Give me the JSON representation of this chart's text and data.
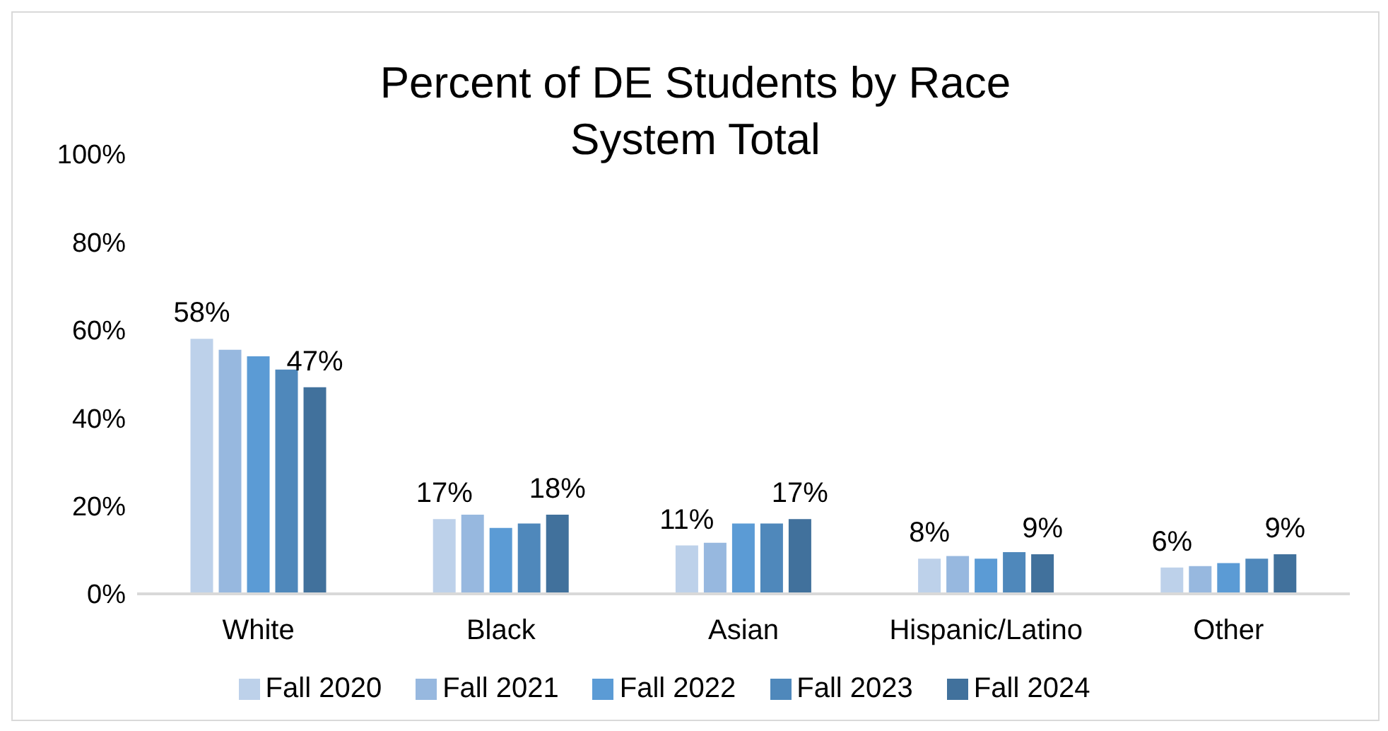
{
  "chart_data": {
    "type": "bar",
    "title": "Percent of DE Students by Race\nSystem Total",
    "categories": [
      "White",
      "Black",
      "Asian",
      "Hispanic/Latino",
      "Other"
    ],
    "series": [
      {
        "name": "Fall 2020",
        "color": "#bdd1ea",
        "values": [
          58,
          17,
          11,
          8,
          6
        ],
        "value_labels": [
          "58%",
          "17%",
          "11%",
          "8%",
          "6%"
        ]
      },
      {
        "name": "Fall 2021",
        "color": "#97b8df",
        "values": [
          55.5,
          18,
          11.6,
          8.6,
          6.3
        ]
      },
      {
        "name": "Fall 2022",
        "color": "#5b9bd5",
        "values": [
          54,
          15,
          16,
          8,
          7
        ]
      },
      {
        "name": "Fall 2023",
        "color": "#4f88bb",
        "values": [
          51,
          16,
          16,
          9.5,
          8
        ]
      },
      {
        "name": "Fall 2024",
        "color": "#41719c",
        "values": [
          47,
          18,
          17,
          9,
          9
        ],
        "value_labels": [
          "47%",
          "18%",
          "17%",
          "9%",
          "9%"
        ]
      }
    ],
    "ylim": [
      0,
      100
    ],
    "yticks": [
      {
        "value": 0,
        "label": "0%"
      },
      {
        "value": 20,
        "label": "20%"
      },
      {
        "value": 40,
        "label": "40%"
      },
      {
        "value": 60,
        "label": "60%"
      },
      {
        "value": 80,
        "label": "80%"
      },
      {
        "value": 100,
        "label": "100%"
      }
    ],
    "grid": false,
    "legend": "bottom"
  }
}
